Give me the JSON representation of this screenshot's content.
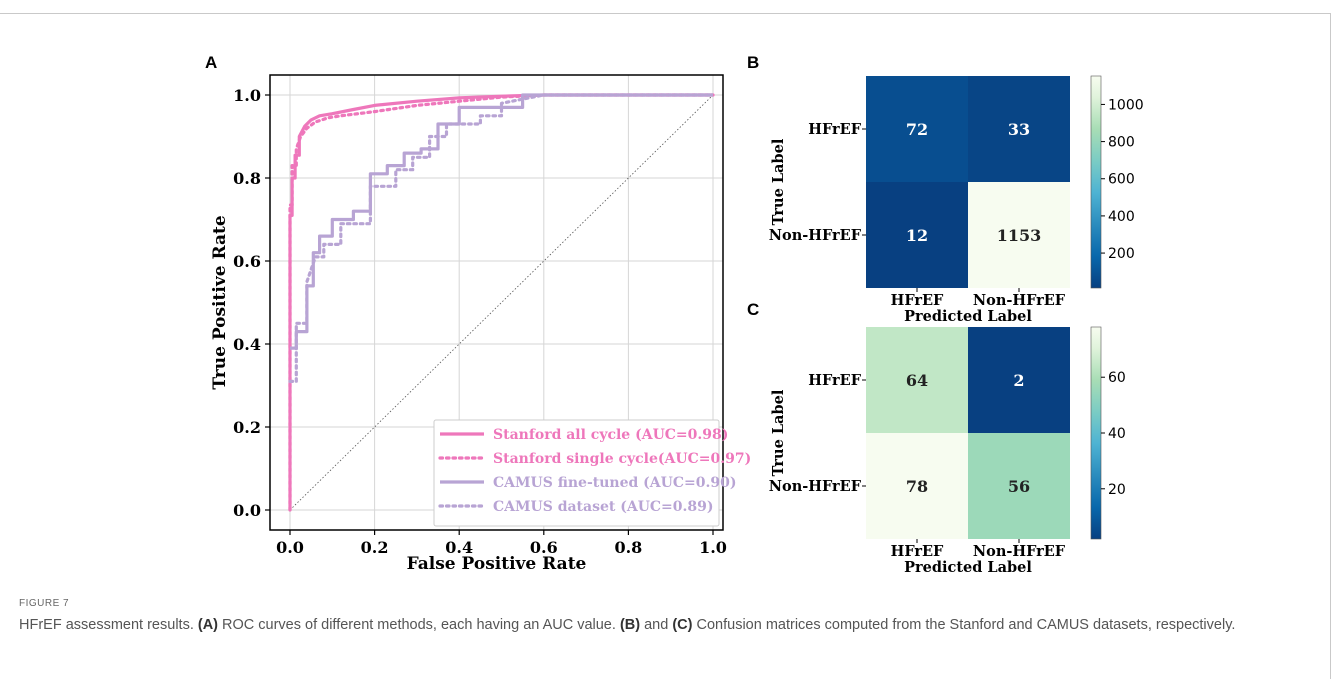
{
  "panels": {
    "a": "A",
    "b": "B",
    "c": "C"
  },
  "caption": {
    "label": "FIGURE 7",
    "segments": [
      {
        "t": "HFrEF assessment results. ",
        "b": false
      },
      {
        "t": "(A)",
        "b": true
      },
      {
        "t": " ROC curves of different methods, each having an AUC value. ",
        "b": false
      },
      {
        "t": "(B)",
        "b": true
      },
      {
        "t": " and ",
        "b": false
      },
      {
        "t": "(C)",
        "b": true
      },
      {
        "t": " Confusion matrices computed from the Stanford and CAMUS datasets, respectively.",
        "b": false
      }
    ]
  },
  "chart_data": [
    {
      "type": "line",
      "xlabel": "False Positive Rate",
      "ylabel": "True Positive Rate",
      "xlim": [
        0,
        1
      ],
      "ylim": [
        0,
        1
      ],
      "xticks": [
        "0.0",
        "0.2",
        "0.4",
        "0.6",
        "0.8",
        "1.0"
      ],
      "yticks": [
        "0.0",
        "0.2",
        "0.4",
        "0.6",
        "0.8",
        "1.0"
      ],
      "grid": true,
      "legend_position": "bottom-right",
      "diagonal_reference": true,
      "series": [
        {
          "name": "Stanford all cycle (AUC=0.98)",
          "color": "#ee77bb",
          "style": "solid",
          "x": [
            0,
            0,
            0.005,
            0.005,
            0.012,
            0.012,
            0.022,
            0.022,
            0.035,
            0.05,
            0.07,
            0.1,
            0.15,
            0.2,
            0.3,
            0.4,
            0.5,
            0.6,
            0.8,
            1.0
          ],
          "y": [
            0,
            0.71,
            0.71,
            0.8,
            0.8,
            0.855,
            0.855,
            0.9,
            0.925,
            0.94,
            0.95,
            0.955,
            0.965,
            0.975,
            0.985,
            0.993,
            0.997,
            1.0,
            1.0,
            1.0
          ]
        },
        {
          "name": "Stanford single cycle(AUC=0.97)",
          "color": "#ee77bb",
          "style": "dotted",
          "x": [
            0,
            0,
            0.005,
            0.005,
            0.015,
            0.015,
            0.025,
            0.04,
            0.06,
            0.09,
            0.12,
            0.2,
            0.3,
            0.4,
            0.5,
            0.6,
            0.8,
            1.0
          ],
          "y": [
            0,
            0.735,
            0.735,
            0.83,
            0.83,
            0.87,
            0.9,
            0.92,
            0.935,
            0.945,
            0.95,
            0.96,
            0.975,
            0.985,
            0.995,
            1.0,
            1.0,
            1.0
          ]
        },
        {
          "name": "CAMUS fine-tuned (AUC=0.90)",
          "color": "#b8a4d4",
          "style": "solid",
          "x": [
            0,
            0.015,
            0.015,
            0.04,
            0.04,
            0.055,
            0.055,
            0.07,
            0.07,
            0.1,
            0.1,
            0.15,
            0.15,
            0.19,
            0.19,
            0.23,
            0.23,
            0.27,
            0.27,
            0.31,
            0.31,
            0.35,
            0.35,
            0.4,
            0.4,
            0.55,
            0.55,
            1.0
          ],
          "y": [
            0.39,
            0.39,
            0.43,
            0.43,
            0.54,
            0.54,
            0.62,
            0.62,
            0.66,
            0.66,
            0.7,
            0.7,
            0.72,
            0.72,
            0.81,
            0.81,
            0.83,
            0.83,
            0.86,
            0.86,
            0.87,
            0.87,
            0.93,
            0.93,
            0.97,
            0.97,
            1.0,
            1.0
          ]
        },
        {
          "name": "CAMUS dataset (AUC=0.89)",
          "color": "#b8a4d4",
          "style": "dotted",
          "x": [
            0,
            0.015,
            0.015,
            0.04,
            0.04,
            0.06,
            0.08,
            0.08,
            0.12,
            0.12,
            0.19,
            0.19,
            0.25,
            0.25,
            0.29,
            0.29,
            0.33,
            0.33,
            0.37,
            0.37,
            0.45,
            0.45,
            0.5,
            0.5,
            0.6,
            1.0
          ],
          "y": [
            0.31,
            0.31,
            0.45,
            0.45,
            0.55,
            0.61,
            0.61,
            0.64,
            0.64,
            0.69,
            0.69,
            0.78,
            0.78,
            0.82,
            0.82,
            0.85,
            0.85,
            0.9,
            0.9,
            0.93,
            0.93,
            0.95,
            0.95,
            0.98,
            1.0,
            1.0
          ]
        }
      ]
    },
    {
      "type": "heatmap",
      "xlabel": "Predicted Label",
      "ylabel": "True Label",
      "row_labels": [
        "HFrEF",
        "Non-HFrEF"
      ],
      "col_labels": [
        "HFrEF",
        "Non-HFrEF"
      ],
      "values": [
        [
          72,
          33
        ],
        [
          12,
          1153
        ]
      ],
      "color_range": [
        12,
        1153
      ],
      "colorbar_ticks": [
        200,
        400,
        600,
        800,
        1000
      ],
      "colormap": "GnBu"
    },
    {
      "type": "heatmap",
      "xlabel": "Predicted Label",
      "ylabel": "True Label",
      "row_labels": [
        "HFrEF",
        "Non-HFrEF"
      ],
      "col_labels": [
        "HFrEF",
        "Non-HFrEF"
      ],
      "values": [
        [
          64,
          2
        ],
        [
          78,
          56
        ]
      ],
      "color_range": [
        2,
        78
      ],
      "colorbar_ticks": [
        20,
        40,
        60
      ],
      "colormap": "GnBu"
    }
  ]
}
